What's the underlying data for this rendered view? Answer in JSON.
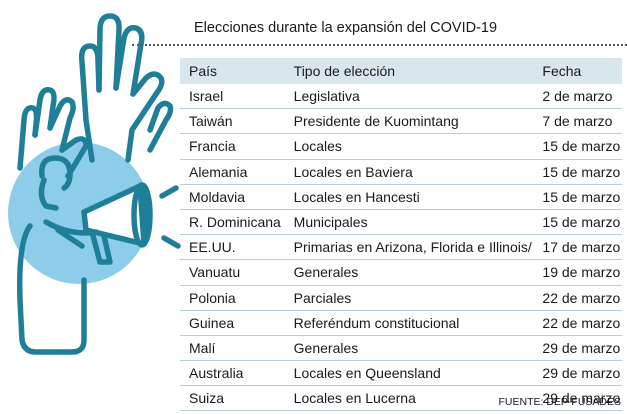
{
  "title": "Elecciones durante la expansión del COVID-19",
  "table": {
    "headers": [
      "País",
      "Tipo de elección",
      "Fecha"
    ],
    "rows": [
      [
        "Israel",
        "Legislativa",
        "2 de marzo"
      ],
      [
        "Taiwán",
        "Presidente de Kuomintang",
        "7 de marzo"
      ],
      [
        "Francia",
        "Locales",
        "15 de marzo"
      ],
      [
        "Alemania",
        "Locales en Baviera",
        "15 de marzo"
      ],
      [
        "Moldavia",
        "Locales en Hancesti",
        "15 de marzo"
      ],
      [
        "R. Dominicana",
        "Municipales",
        "15 de marzo"
      ],
      [
        "EE.UU.",
        "Primarias en Arizona, Florida e Illinois/",
        "17 de marzo"
      ],
      [
        "Vanuatu",
        "Generales",
        "19 de marzo"
      ],
      [
        "Polonia",
        "Parciales",
        "22 de marzo"
      ],
      [
        "Guinea",
        "Referéndum constitucional",
        "22 de marzo"
      ],
      [
        "Malí",
        "Generales",
        "29 de marzo"
      ],
      [
        "Australia",
        "Locales en Queensland",
        "29 de marzo"
      ],
      [
        "Suiza",
        "Locales en Lucerna",
        "29 de marzo"
      ]
    ]
  },
  "source": "FUENTE: DEP-FUSADES",
  "colors": {
    "accent_blue": "#8ecdea",
    "line_teal": "#1f7f98",
    "header_bg": "#d9e7ed"
  },
  "illustration": "raised-hands-and-megaphone-icon"
}
